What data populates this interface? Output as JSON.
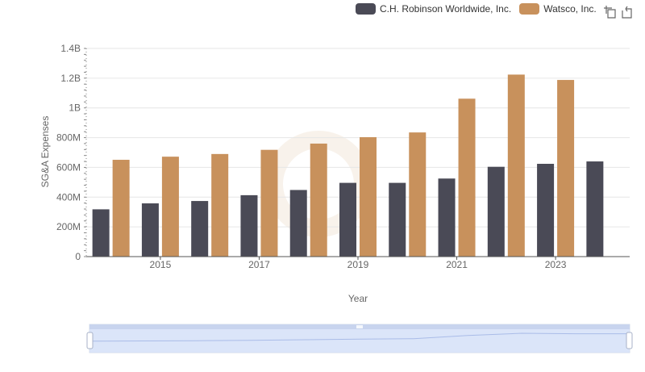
{
  "legend": {
    "items": [
      {
        "label": "C.H. Robinson Worldwide, Inc.",
        "color": "#4a4a56"
      },
      {
        "label": "Watsco, Inc.",
        "color": "#c8915c"
      }
    ]
  },
  "toolbox": {
    "icons": [
      "zoom-icon",
      "restore-icon"
    ]
  },
  "chart_data": {
    "type": "bar",
    "title": "",
    "xlabel": "Year",
    "ylabel": "SG&A Expenses",
    "categories": [
      "2014",
      "2015",
      "2016",
      "2017",
      "2018",
      "2019",
      "2020",
      "2021",
      "2022",
      "2023",
      "2024"
    ],
    "x_tick_labels": [
      "2015",
      "2017",
      "2019",
      "2021",
      "2023"
    ],
    "ylim": [
      0,
      1400000000
    ],
    "y_ticks": [
      {
        "value": 0,
        "label": "0"
      },
      {
        "value": 200000000,
        "label": "200M"
      },
      {
        "value": 400000000,
        "label": "400M"
      },
      {
        "value": 600000000,
        "label": "600M"
      },
      {
        "value": 800000000,
        "label": "800M"
      },
      {
        "value": 1000000000,
        "label": "1B"
      },
      {
        "value": 1200000000,
        "label": "1.2B"
      },
      {
        "value": 1400000000,
        "label": "1.4B"
      }
    ],
    "series": [
      {
        "name": "C.H. Robinson Worldwide, Inc.",
        "color": "#4a4a56",
        "values": [
          318000000,
          358000000,
          374000000,
          413000000,
          448000000,
          496000000,
          496000000,
          525000000,
          604000000,
          624000000,
          640000000
        ]
      },
      {
        "name": "Watsco, Inc.",
        "color": "#c8915c",
        "values": [
          651000000,
          672000000,
          690000000,
          718000000,
          760000000,
          803000000,
          835000000,
          1062000000,
          1224000000,
          1188000000,
          null
        ]
      }
    ],
    "grid": true,
    "legend_position": "top-right",
    "data_zoom": true
  }
}
